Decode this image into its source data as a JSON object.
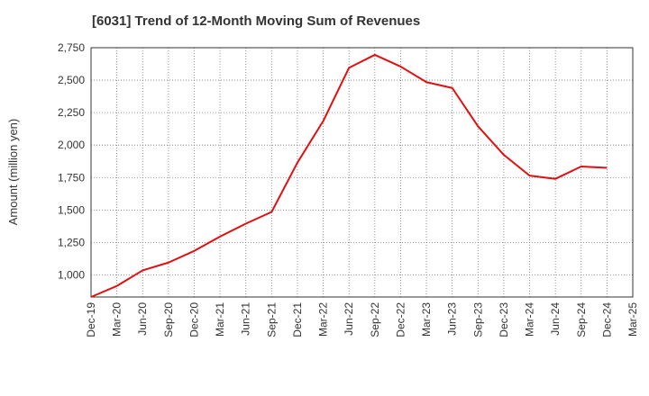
{
  "chart_data": {
    "type": "line",
    "title": "[6031]  Trend of 12-Month Moving Sum of Revenues",
    "xlabel": "",
    "ylabel": "Amount (million yen)",
    "ylim": [
      830,
      2750
    ],
    "y_ticks": [
      1000,
      1250,
      1500,
      1750,
      2000,
      2250,
      2500,
      2750
    ],
    "y_tick_labels": [
      "1,000",
      "1,250",
      "1,500",
      "1,750",
      "2,000",
      "2,250",
      "2,500",
      "2,750"
    ],
    "x_tick_labels": [
      "Dec-19",
      "Mar-20",
      "Jun-20",
      "Sep-20",
      "Dec-20",
      "Mar-21",
      "Jun-21",
      "Sep-21",
      "Dec-21",
      "Mar-22",
      "Jun-22",
      "Sep-22",
      "Dec-22",
      "Mar-23",
      "Jun-23",
      "Sep-23",
      "Dec-23",
      "Mar-24",
      "Jun-24",
      "Sep-24",
      "Dec-24",
      "Mar-25"
    ],
    "grid": true,
    "series": [
      {
        "color": "#e01010",
        "x": [
          "Dec-19",
          "Mar-20",
          "Jun-20",
          "Sep-20",
          "Dec-20",
          "Mar-21",
          "Jun-21",
          "Sep-21",
          "Dec-21",
          "Mar-22",
          "Jun-22",
          "Sep-22",
          "Dec-22",
          "Mar-23",
          "Jun-23",
          "Sep-23",
          "Dec-23",
          "Mar-24",
          "Jun-24",
          "Sep-24",
          "Dec-24"
        ],
        "values": [
          830,
          915,
          1035,
          1095,
          1185,
          1295,
          1395,
          1485,
          1865,
          2185,
          2595,
          2695,
          2605,
          2485,
          2440,
          2145,
          1925,
          1765,
          1740,
          1835,
          1825
        ]
      }
    ]
  }
}
